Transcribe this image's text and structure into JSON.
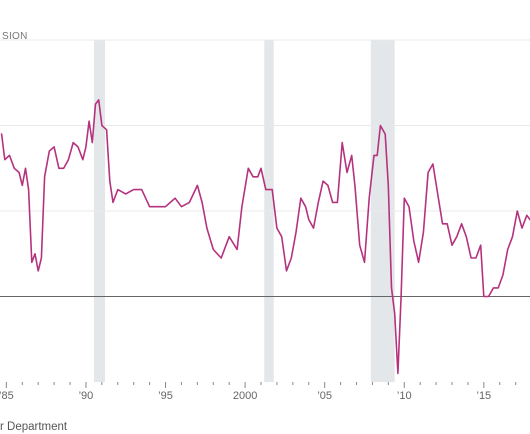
{
  "chart_data": {
    "type": "line",
    "title": "",
    "ylabel": "",
    "y_unit_fragment": "SION",
    "source": "r Department",
    "x_tick_labels": [
      {
        "x": 1985,
        "label": "’85"
      },
      {
        "x": 1990,
        "label": "’90"
      },
      {
        "x": 1995,
        "label": "’95"
      },
      {
        "x": 2000,
        "label": "2000"
      },
      {
        "x": 2005,
        "label": "’05"
      },
      {
        "x": 2010,
        "label": "’10"
      },
      {
        "x": 2015,
        "label": "’15"
      }
    ],
    "xlim": [
      1984.6,
      2017.9
    ],
    "ylim": [
      -4,
      4
    ],
    "y_gridlines": [
      -2,
      0,
      2,
      4
    ],
    "baseline": -2,
    "recessions": [
      {
        "start": 1990.5,
        "end": 1991.2
      },
      {
        "start": 2001.2,
        "end": 2001.8
      },
      {
        "start": 2007.9,
        "end": 2009.4
      }
    ],
    "series": [
      {
        "color": "#b5337e",
        "points": [
          [
            1984.7,
            1.8
          ],
          [
            1984.9,
            1.2
          ],
          [
            1985.2,
            1.3
          ],
          [
            1985.5,
            1.0
          ],
          [
            1985.8,
            0.9
          ],
          [
            1986.0,
            0.6
          ],
          [
            1986.2,
            1.0
          ],
          [
            1986.4,
            0.5
          ],
          [
            1986.6,
            -1.2
          ],
          [
            1986.8,
            -1.0
          ],
          [
            1987.0,
            -1.4
          ],
          [
            1987.2,
            -1.1
          ],
          [
            1987.4,
            0.8
          ],
          [
            1987.7,
            1.4
          ],
          [
            1988.0,
            1.5
          ],
          [
            1988.3,
            1.0
          ],
          [
            1988.6,
            1.0
          ],
          [
            1988.9,
            1.2
          ],
          [
            1989.2,
            1.6
          ],
          [
            1989.5,
            1.5
          ],
          [
            1989.8,
            1.2
          ],
          [
            1990.0,
            1.5
          ],
          [
            1990.2,
            2.1
          ],
          [
            1990.4,
            1.6
          ],
          [
            1990.6,
            2.5
          ],
          [
            1990.8,
            2.6
          ],
          [
            1991.0,
            2.0
          ],
          [
            1991.3,
            1.9
          ],
          [
            1991.5,
            0.7
          ],
          [
            1991.7,
            0.2
          ],
          [
            1992.0,
            0.5
          ],
          [
            1992.5,
            0.4
          ],
          [
            1993.0,
            0.5
          ],
          [
            1993.5,
            0.5
          ],
          [
            1994.0,
            0.1
          ],
          [
            1994.5,
            0.1
          ],
          [
            1995.0,
            0.1
          ],
          [
            1995.3,
            0.2
          ],
          [
            1995.6,
            0.3
          ],
          [
            1996.0,
            0.1
          ],
          [
            1996.5,
            0.2
          ],
          [
            1997.0,
            0.6
          ],
          [
            1997.3,
            0.2
          ],
          [
            1997.6,
            -0.4
          ],
          [
            1998.0,
            -0.9
          ],
          [
            1998.5,
            -1.1
          ],
          [
            1999.0,
            -0.6
          ],
          [
            1999.5,
            -0.9
          ],
          [
            1999.8,
            0.1
          ],
          [
            2000.2,
            1.0
          ],
          [
            2000.5,
            0.8
          ],
          [
            2000.8,
            0.8
          ],
          [
            2001.0,
            1.0
          ],
          [
            2001.3,
            0.5
          ],
          [
            2001.7,
            0.5
          ],
          [
            2002.0,
            -0.4
          ],
          [
            2002.3,
            -0.6
          ],
          [
            2002.6,
            -1.4
          ],
          [
            2002.9,
            -1.1
          ],
          [
            2003.2,
            -0.5
          ],
          [
            2003.5,
            0.3
          ],
          [
            2003.8,
            0.1
          ],
          [
            2004.0,
            -0.2
          ],
          [
            2004.3,
            -0.4
          ],
          [
            2004.6,
            0.2
          ],
          [
            2004.9,
            0.7
          ],
          [
            2005.2,
            0.6
          ],
          [
            2005.5,
            0.2
          ],
          [
            2005.8,
            0.2
          ],
          [
            2006.1,
            1.6
          ],
          [
            2006.4,
            0.9
          ],
          [
            2006.7,
            1.3
          ],
          [
            2006.9,
            0.6
          ],
          [
            2007.2,
            -0.8
          ],
          [
            2007.5,
            -1.2
          ],
          [
            2007.8,
            0.3
          ],
          [
            2008.1,
            1.3
          ],
          [
            2008.3,
            1.3
          ],
          [
            2008.5,
            2.0
          ],
          [
            2008.8,
            1.8
          ],
          [
            2009.0,
            0.6
          ],
          [
            2009.2,
            -1.8
          ],
          [
            2009.4,
            -2.4
          ],
          [
            2009.6,
            -3.8
          ],
          [
            2009.8,
            -2.0
          ],
          [
            2010.0,
            0.3
          ],
          [
            2010.3,
            0.1
          ],
          [
            2010.6,
            -0.7
          ],
          [
            2010.9,
            -1.2
          ],
          [
            2011.2,
            -0.5
          ],
          [
            2011.5,
            0.9
          ],
          [
            2011.8,
            1.1
          ],
          [
            2012.1,
            0.4
          ],
          [
            2012.4,
            -0.3
          ],
          [
            2012.7,
            -0.3
          ],
          [
            2013.0,
            -0.8
          ],
          [
            2013.3,
            -0.6
          ],
          [
            2013.6,
            -0.3
          ],
          [
            2013.9,
            -0.6
          ],
          [
            2014.2,
            -1.1
          ],
          [
            2014.5,
            -1.1
          ],
          [
            2014.8,
            -0.8
          ],
          [
            2015.0,
            -2.0
          ],
          [
            2015.3,
            -2.0
          ],
          [
            2015.6,
            -1.8
          ],
          [
            2015.9,
            -1.8
          ],
          [
            2016.2,
            -1.5
          ],
          [
            2016.5,
            -0.9
          ],
          [
            2016.8,
            -0.6
          ],
          [
            2017.1,
            0.0
          ],
          [
            2017.4,
            -0.4
          ],
          [
            2017.7,
            -0.1
          ],
          [
            2017.9,
            -0.2
          ]
        ]
      }
    ]
  }
}
